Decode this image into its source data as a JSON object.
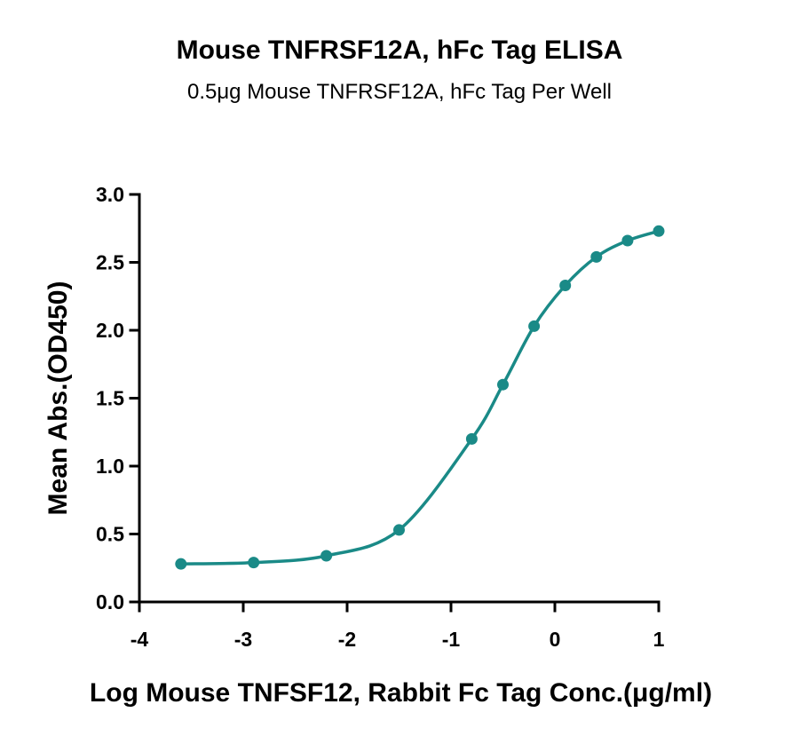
{
  "chart_data": {
    "type": "line",
    "title": "Mouse TNFRSF12A, hFc Tag ELISA",
    "subtitle": "0.5μg Mouse TNFRSF12A, hFc Tag Per Well",
    "xlabel": "Log Mouse TNFSF12, Rabbit Fc Tag Conc.(μg/ml)",
    "ylabel": "Mean Abs.(OD450)",
    "xlim": [
      -4,
      1
    ],
    "ylim": [
      0,
      3
    ],
    "xticks": [
      -4,
      -3,
      -2,
      -1,
      0,
      1
    ],
    "xtick_labels": [
      "-4",
      "-3",
      "-2",
      "-1",
      "0",
      "1"
    ],
    "yticks": [
      0,
      0.5,
      1,
      1.5,
      2,
      2.5,
      3
    ],
    "ytick_labels": [
      "0.0",
      "0.5",
      "1.0",
      "1.5",
      "2.0",
      "2.5",
      "3.0"
    ],
    "grid": false,
    "series": [
      {
        "color": "#1a8a87",
        "x": [
          -3.6,
          -2.9,
          -2.2,
          -1.5,
          -0.8,
          -0.5,
          -0.2,
          0.1,
          0.4,
          0.7,
          1.0
        ],
        "y": [
          0.28,
          0.29,
          0.34,
          0.53,
          1.2,
          1.6,
          2.03,
          2.33,
          2.54,
          2.66,
          2.73
        ]
      }
    ]
  }
}
